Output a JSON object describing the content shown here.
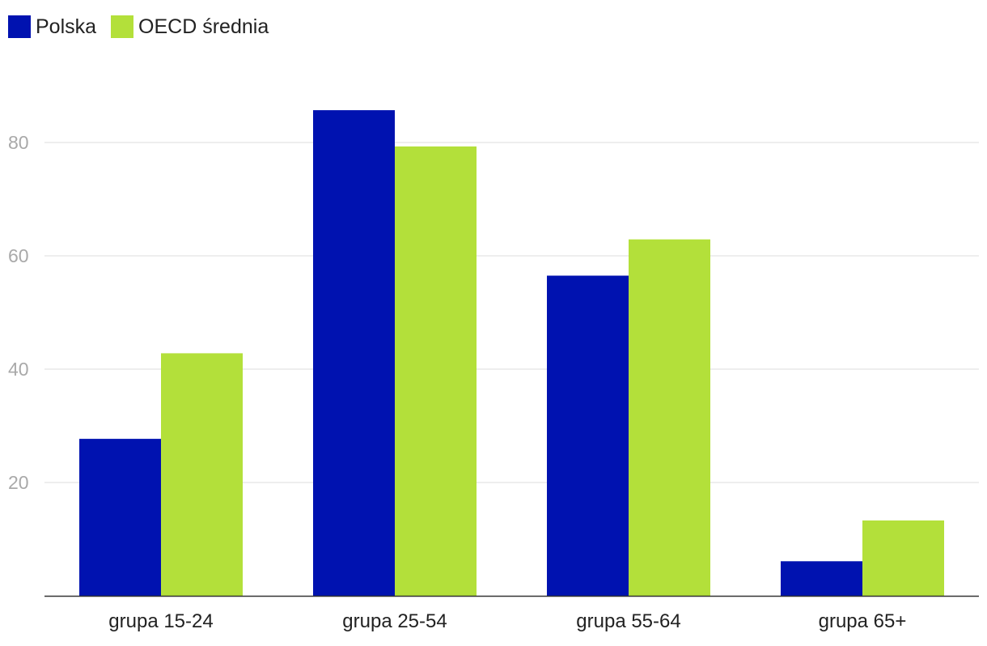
{
  "chart_data": {
    "type": "bar",
    "categories": [
      "grupa 15-24",
      "grupa 25-54",
      "grupa 55-64",
      "grupa 65+"
    ],
    "series": [
      {
        "name": "Polska",
        "color": "#0012b0",
        "values": [
          27.7,
          85.7,
          56.5,
          6.1
        ]
      },
      {
        "name": "OECD średnia",
        "color": "#b3e03a",
        "values": [
          42.8,
          79.3,
          62.9,
          13.3
        ]
      }
    ],
    "yticks": [
      20,
      40,
      60,
      80
    ],
    "ylim": [
      0,
      90
    ],
    "grid": true,
    "legend_position": "top-left"
  }
}
